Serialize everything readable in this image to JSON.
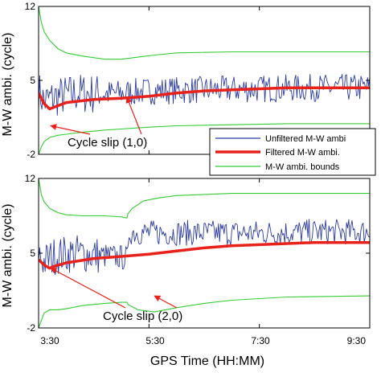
{
  "xlabel": "GPS Time (HH:MM)",
  "x_tick_labels": [
    "3:30",
    "5:30",
    "7:30",
    "9:30"
  ],
  "legend": {
    "placement": "right, between panels",
    "entries": [
      {
        "label": "Unfiltered M-W ambi",
        "color": "#2b3aa0"
      },
      {
        "label": "Filtered M-W ambi.",
        "color": "#e8211b"
      },
      {
        "label": "M-W ambi. bounds",
        "color": "#33cc33"
      }
    ]
  },
  "colors": {
    "unfiltered": "#2b3aa0",
    "filtered": "#e8211b",
    "bounds": "#33cc33",
    "arrow": "#e8211b"
  },
  "chart_data": [
    {
      "type": "line",
      "ylabel": "M-W ambi. (cycle)",
      "ylim": [
        -2,
        12
      ],
      "y_tick_labels": [
        "12",
        "5",
        "-2"
      ],
      "x_unit": "hours",
      "xlim": [
        3.5,
        9.5
      ],
      "annotation": {
        "text": "Cycle slip (1,0)",
        "points_to": [
          {
            "x": 3.72,
            "y": 0.7
          },
          {
            "x": 5.1,
            "y": 3.4
          }
        ]
      },
      "series": [
        {
          "name": "Unfiltered M-W ambi",
          "role": "unfiltered",
          "noise": 1.3,
          "x": [
            3.5,
            3.6,
            3.8,
            4.2,
            4.6,
            5.0,
            5.5,
            6.5,
            7.5,
            8.5,
            9.5
          ],
          "y": [
            4.0,
            3.0,
            3.4,
            3.8,
            3.7,
            3.8,
            4.0,
            4.1,
            4.2,
            4.3,
            4.3
          ]
        },
        {
          "name": "Filtered M-W ambi.",
          "role": "filtered",
          "x": [
            3.5,
            3.6,
            3.7,
            3.8,
            4.0,
            4.5,
            5.0,
            5.5,
            6.0,
            6.5,
            7.0,
            7.5,
            8.0,
            8.5,
            9.0,
            9.5
          ],
          "y": [
            3.8,
            2.8,
            2.3,
            2.5,
            2.9,
            3.2,
            3.3,
            3.5,
            3.8,
            4.0,
            4.1,
            4.2,
            4.3,
            4.3,
            4.3,
            4.3
          ]
        },
        {
          "name": "M-W ambi. bounds",
          "role": "bound",
          "x": [
            3.5,
            3.55,
            3.6,
            3.7,
            3.85,
            4.0,
            4.3,
            4.7,
            5.0,
            5.3,
            5.6,
            6.0,
            7.0,
            8.0,
            9.5
          ],
          "y": [
            12.0,
            10.5,
            9.6,
            8.8,
            8.0,
            7.6,
            7.3,
            7.0,
            7.0,
            7.2,
            7.4,
            7.6,
            7.7,
            7.7,
            7.7
          ]
        },
        {
          "name": "M-W ambi. bounds",
          "role": "bound",
          "x": [
            3.5,
            3.55,
            3.6,
            3.7,
            3.85,
            4.0,
            4.3,
            4.7,
            5.0,
            5.3,
            5.6,
            6.0,
            7.0,
            8.0,
            9.5
          ],
          "y": [
            -2.0,
            -1.3,
            -0.8,
            -0.4,
            -0.2,
            -0.1,
            0.1,
            0.3,
            0.4,
            0.5,
            0.6,
            0.7,
            0.8,
            0.9,
            0.9
          ]
        }
      ]
    },
    {
      "type": "line",
      "ylabel": "M-W ambi. (cycle)",
      "ylim": [
        -2,
        12
      ],
      "y_tick_labels": [
        "12",
        "5",
        "-2"
      ],
      "x_unit": "hours",
      "xlim": [
        3.5,
        9.5
      ],
      "annotation": {
        "text": "Cycle slip (2,0)",
        "points_to": [
          {
            "x": 3.72,
            "y": 3.6
          },
          {
            "x": 5.6,
            "y": 1.0
          }
        ]
      },
      "series": [
        {
          "name": "Unfiltered M-W ambi",
          "role": "unfiltered",
          "noise": 1.2,
          "x": [
            3.5,
            3.6,
            3.8,
            4.2,
            4.6,
            5.0,
            5.12,
            5.13,
            5.5,
            6.5,
            7.5,
            8.5,
            9.5
          ],
          "y": [
            5.0,
            4.2,
            4.8,
            5.0,
            4.8,
            4.6,
            4.5,
            7.0,
            6.9,
            6.9,
            6.9,
            7.0,
            7.0
          ]
        },
        {
          "name": "Filtered M-W ambi.",
          "role": "filtered",
          "x": [
            3.5,
            3.6,
            3.7,
            3.8,
            4.0,
            4.5,
            5.0,
            5.5,
            6.0,
            6.5,
            7.0,
            7.5,
            8.0,
            8.5,
            9.0,
            9.5
          ],
          "y": [
            4.4,
            3.9,
            3.6,
            3.8,
            4.1,
            4.5,
            4.7,
            4.9,
            5.2,
            5.5,
            5.7,
            5.8,
            5.9,
            6.0,
            6.0,
            6.0
          ]
        },
        {
          "name": "M-W ambi. bounds",
          "role": "bound",
          "x": [
            3.5,
            3.55,
            3.6,
            3.7,
            3.85,
            4.0,
            4.3,
            4.7,
            5.0,
            5.1,
            5.12,
            5.2,
            5.4,
            5.7,
            6.0,
            6.5,
            7.0,
            8.0,
            9.5
          ],
          "y": [
            12.0,
            10.5,
            9.8,
            9.2,
            8.8,
            8.6,
            8.5,
            8.5,
            8.4,
            8.3,
            8.7,
            9.2,
            9.9,
            10.2,
            10.4,
            10.5,
            10.6,
            10.6,
            10.6
          ]
        },
        {
          "name": "M-W ambi. bounds",
          "role": "bound",
          "x": [
            3.5,
            3.55,
            3.6,
            3.7,
            3.85,
            4.0,
            4.3,
            4.7,
            5.0,
            5.1,
            5.12,
            5.3,
            5.6,
            6.0,
            6.5,
            7.0,
            8.0,
            9.5
          ],
          "y": [
            -2.0,
            -1.3,
            -0.6,
            -0.3,
            -0.3,
            -0.2,
            0.1,
            0.3,
            0.4,
            0.4,
            0.2,
            -0.3,
            -0.5,
            -0.1,
            0.3,
            0.6,
            0.9,
            1.0
          ]
        }
      ]
    }
  ]
}
